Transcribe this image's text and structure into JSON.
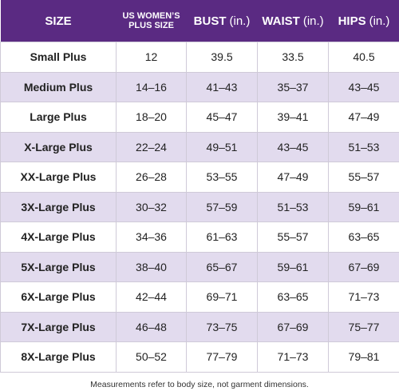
{
  "table": {
    "header": [
      {
        "label": [
          "SIZE"
        ]
      },
      {
        "label": [
          "US WOMEN’S",
          "PLUS SIZE"
        ]
      },
      {
        "label": [
          "BUST"
        ],
        "unit": "(in.)"
      },
      {
        "label": [
          "WAIST"
        ],
        "unit": "(in.)"
      },
      {
        "label": [
          "HIPS"
        ],
        "unit": "(in.)"
      }
    ],
    "rows": [
      [
        "Small Plus",
        "12",
        "39.5",
        "33.5",
        "40.5"
      ],
      [
        "Medium Plus",
        "14–16",
        "41–43",
        "35–37",
        "43–45"
      ],
      [
        "Large Plus",
        "18–20",
        "45–47",
        "39–41",
        "47–49"
      ],
      [
        "X-Large Plus",
        "22–24",
        "49–51",
        "43–45",
        "51–53"
      ],
      [
        "XX-Large Plus",
        "26–28",
        "53–55",
        "47–49",
        "55–57"
      ],
      [
        "3X-Large Plus",
        "30–32",
        "57–59",
        "51–53",
        "59–61"
      ],
      [
        "4X-Large Plus",
        "34–36",
        "61–63",
        "55–57",
        "63–65"
      ],
      [
        "5X-Large Plus",
        "38–40",
        "65–67",
        "59–61",
        "67–69"
      ],
      [
        "6X-Large Plus",
        "42–44",
        "69–71",
        "63–65",
        "71–73"
      ],
      [
        "7X-Large Plus",
        "46–48",
        "73–75",
        "67–69",
        "75–77"
      ],
      [
        "8X-Large Plus",
        "50–52",
        "77–79",
        "71–73",
        "79–81"
      ]
    ]
  },
  "footnote": "Measurements refer to body size, not garment dimensions."
}
